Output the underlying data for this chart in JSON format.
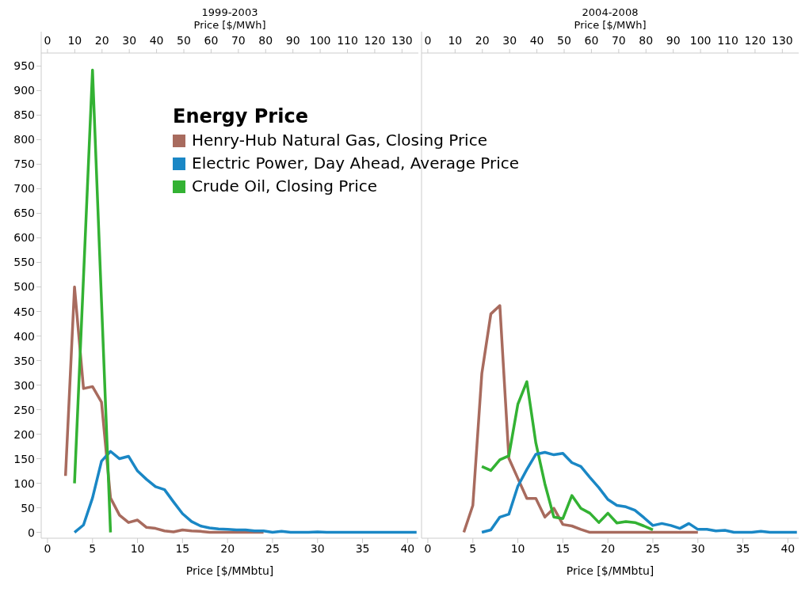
{
  "chart_data": [
    {
      "type": "line",
      "title": "1999-2003",
      "xlabel": "Price [$/MMbtu]",
      "x2label": "Price [$/MWh]",
      "legend_title": "Energy Price",
      "legend": "top right",
      "grid": false,
      "marker": "none",
      "line_style": "solid",
      "x": [
        2,
        3,
        4,
        5,
        6,
        7,
        8,
        9,
        10,
        11,
        12,
        13,
        14,
        15,
        16,
        17,
        18,
        19,
        20,
        21,
        22,
        23,
        24,
        25,
        26,
        27,
        28,
        29,
        30,
        31,
        32,
        33,
        34,
        35,
        36,
        37,
        38,
        39,
        40,
        41
      ],
      "xlim": [
        -0.7,
        41.2
      ],
      "xticks": [
        0,
        5,
        10,
        15,
        20,
        25,
        30,
        35,
        40
      ],
      "x2lim": [
        -2.3,
        136
      ],
      "x2ticks": [
        0,
        10,
        20,
        30,
        40,
        50,
        60,
        70,
        80,
        90,
        100,
        110,
        120,
        130
      ],
      "ylim": [
        -12,
        975
      ],
      "yticks": [
        0,
        50,
        100,
        150,
        200,
        250,
        300,
        350,
        400,
        450,
        500,
        550,
        600,
        650,
        700,
        750,
        800,
        850,
        900,
        950
      ],
      "series": [
        {
          "name": "Henry-Hub Natural Gas, Closing Price",
          "color": "#a86b5e",
          "values": [
            115,
            500,
            293,
            297,
            265,
            70,
            35,
            20,
            25,
            10,
            8,
            3,
            1,
            5,
            3,
            2,
            0,
            0,
            0,
            0,
            0,
            0,
            0,
            null,
            null,
            null,
            null,
            null,
            null,
            null,
            null,
            null,
            null,
            null,
            null,
            null,
            null,
            null,
            null,
            null
          ]
        },
        {
          "name": "Electric Power, Day Ahead, Average Price",
          "color": "#1a87c5",
          "values": [
            null,
            0,
            15,
            70,
            145,
            165,
            150,
            155,
            125,
            108,
            93,
            87,
            62,
            38,
            22,
            13,
            9,
            7,
            6,
            5,
            5,
            3,
            3,
            0,
            2,
            0,
            0,
            0,
            1,
            0,
            0,
            0,
            0,
            0,
            0,
            0,
            0,
            0,
            0,
            0
          ]
        },
        {
          "name": "Crude Oil, Closing Price",
          "color": "#33b233",
          "values": [
            null,
            100,
            520,
            942,
            470,
            0,
            null,
            null,
            null,
            null,
            null,
            null,
            null,
            null,
            null,
            null,
            null,
            null,
            null,
            null,
            null,
            null,
            null,
            null,
            null,
            null,
            null,
            null,
            null,
            null,
            null,
            null,
            null,
            null,
            null,
            null,
            null,
            null,
            null,
            null
          ]
        }
      ]
    },
    {
      "type": "line",
      "title": "2004-2008",
      "xlabel": "Price [$/MMbtu]",
      "x2label": "Price [$/MWh]",
      "grid": false,
      "marker": "none",
      "line_style": "solid",
      "tick_labels": "x",
      "x": [
        4,
        5,
        6,
        7,
        8,
        9,
        10,
        11,
        12,
        13,
        14,
        15,
        16,
        17,
        18,
        19,
        20,
        21,
        22,
        23,
        24,
        25,
        26,
        27,
        28,
        29,
        30,
        31,
        32,
        33,
        34,
        35,
        36,
        37,
        38,
        39,
        40,
        41
      ],
      "xlim": [
        -0.7,
        41.2
      ],
      "xticks": [
        0,
        5,
        10,
        15,
        20,
        25,
        30,
        35,
        40
      ],
      "x2lim": [
        -2.3,
        136
      ],
      "x2ticks": [
        0,
        10,
        20,
        30,
        40,
        50,
        60,
        70,
        80,
        90,
        100,
        110,
        120,
        130
      ],
      "ylim": [
        -12,
        975
      ],
      "yticks": [
        0,
        50,
        100,
        150,
        200,
        250,
        300,
        350,
        400,
        450,
        500,
        550,
        600,
        650,
        700,
        750,
        800,
        850,
        900,
        950
      ],
      "series": [
        {
          "color": "#a86b5e",
          "values": [
            0,
            55,
            324,
            445,
            462,
            151,
            110,
            69,
            69,
            31,
            49,
            16,
            13,
            6,
            0,
            0,
            0,
            0,
            0,
            0,
            0,
            0,
            0,
            0,
            0,
            0,
            0,
            null,
            null,
            null,
            null,
            null,
            null,
            null,
            null,
            null,
            null,
            null
          ]
        },
        {
          "color": "#33b233",
          "values": [
            null,
            null,
            134,
            126,
            148,
            156,
            261,
            307,
            182,
            99,
            31,
            28,
            75,
            49,
            39,
            20,
            39,
            19,
            22,
            20,
            13,
            5,
            null,
            null,
            null,
            null,
            null,
            null,
            null,
            null,
            null,
            null,
            null,
            null,
            null,
            null,
            null,
            null
          ]
        },
        {
          "color": "#1a87c5",
          "values": [
            null,
            null,
            0,
            5,
            31,
            37,
            94,
            128,
            159,
            163,
            158,
            161,
            142,
            134,
            112,
            91,
            67,
            55,
            52,
            45,
            30,
            14,
            18,
            14,
            8,
            18,
            6,
            6,
            3,
            4,
            0,
            0,
            0,
            2,
            0,
            0,
            0,
            0
          ]
        }
      ]
    }
  ]
}
